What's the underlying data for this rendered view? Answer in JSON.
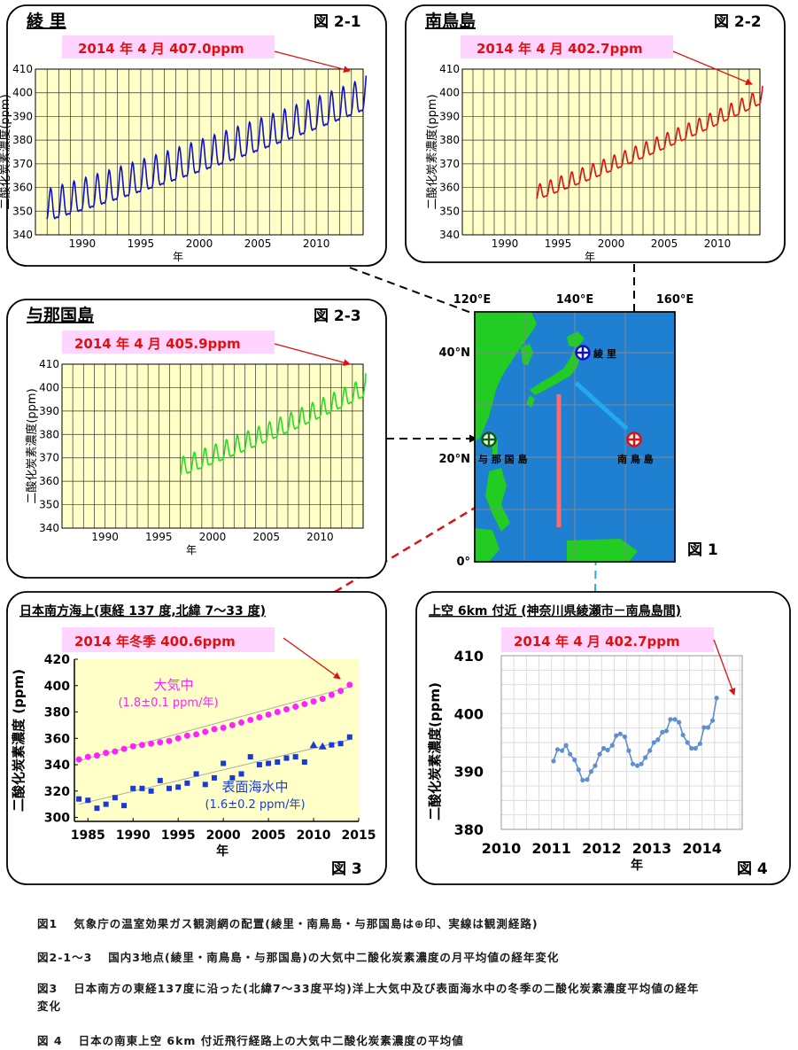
{
  "panels": {
    "ryori": {
      "title": "綾 里",
      "fig_label": "図 2-1",
      "callout": "2014 年 4 月 407.0ppm",
      "ylabel": "二酸化炭素濃度(ppm)",
      "xlabel": "年"
    },
    "minamitori": {
      "title": "南鳥島",
      "fig_label": "図 2-2",
      "callout": "2014 年 4 月 402.7ppm",
      "ylabel": "二酸化炭素濃度(ppm)",
      "xlabel": "年"
    },
    "yonaguni": {
      "title": "与那国島",
      "fig_label": "図 2-3",
      "callout": "2014 年 4 月 405.9ppm",
      "ylabel": "二酸化炭素濃度(ppm)",
      "xlabel": "年"
    },
    "ocean": {
      "title": "日本南方海上(東経 137 度,北緯 7～33 度)",
      "fig_label": "図 3",
      "callout": "2014 年冬季 400.6ppm",
      "ylabel": "二酸化炭素濃度 (ppm)",
      "xlabel": "年",
      "atm_label": "大気中",
      "atm_rate": "(1.8±0.1 ppm/年)",
      "sea_label": "表面海水中",
      "sea_rate": "(1.6±0.2 ppm/年)"
    },
    "aircraft": {
      "title": "上空 6km 付近 (神奈川県綾瀬市－南鳥島間)",
      "fig_label": "図 4",
      "callout": "2014 年 4 月 402.7ppm",
      "ylabel": "二酸化炭素濃度(ppm)",
      "xlabel": "年"
    },
    "map": {
      "fig_label": "図 1",
      "lon_labels": [
        "120°E",
        "140°E",
        "160°E"
      ],
      "lat_labels": [
        "40°N",
        "20°N",
        "0°"
      ],
      "stations": [
        "綾 里",
        "与 那 国 島",
        "南 鳥 島"
      ]
    }
  },
  "captions": [
    {
      "label": "図1",
      "text": "気象庁の温室効果ガス観測網の配置(綾里・南鳥島・与那国島は⊕印、実線は観測経路)"
    },
    {
      "label": "図2-1～3",
      "text": "国内3地点(綾里・南鳥島・与那国島)の大気中二酸化炭素濃度の月平均値の経年変化"
    },
    {
      "label": "図3",
      "text": "日本南方の東経137度に沿った(北緯7～33度平均)洋上大気中及び表面海水中の冬季の二酸化炭素濃度平均値の経年変化"
    },
    {
      "label": "図 4",
      "text": "日本の南東上空 6km 付近飛行経路上の大気中二酸化炭素濃度の平均値"
    }
  ],
  "colors": {
    "ryori": "#1010cc",
    "minamitori": "#e01010",
    "yonaguni": "#22dd22",
    "atm": "#ff22ff",
    "sea": "#1a3ad8",
    "aircraft": "#5f8fcf",
    "arrow": "#e01010",
    "callout_bg": "#ffd4ff",
    "plot_bg": "#ffffc8",
    "land": "#22cc22",
    "sea_blue": "#1f7fd0"
  },
  "chart_data": [
    {
      "id": "ryori",
      "type": "line",
      "xlim": [
        1986,
        2014
      ],
      "ylim": [
        340,
        410
      ],
      "yticks": [
        340,
        350,
        360,
        370,
        380,
        390,
        400,
        410
      ],
      "xticks": [
        1990,
        1995,
        2000,
        2005,
        2010
      ],
      "trend_start": 350.5,
      "trend_end": 397.8,
      "amplitude": 6.5,
      "series": [
        {
          "x_start": 1987.0,
          "x_end": 2014.3
        }
      ],
      "annotation": {
        "x": 2014.3,
        "y": 407.0
      }
    },
    {
      "id": "minamitori",
      "type": "line",
      "xlim": [
        1986,
        2014
      ],
      "ylim": [
        340,
        410
      ],
      "yticks": [
        340,
        350,
        360,
        370,
        380,
        390,
        400,
        410
      ],
      "xticks": [
        1990,
        1995,
        2000,
        2005,
        2010
      ],
      "trend_start": 357.0,
      "trend_end": 398.0,
      "amplitude": 3.0,
      "series": [
        {
          "x_start": 1993.0,
          "x_end": 2014.3
        }
      ],
      "annotation": {
        "x": 2014.3,
        "y": 402.7
      }
    },
    {
      "id": "yonaguni",
      "type": "line",
      "xlim": [
        1986,
        2014
      ],
      "ylim": [
        340,
        410
      ],
      "yticks": [
        340,
        350,
        360,
        370,
        380,
        390,
        400,
        410
      ],
      "xticks": [
        1990,
        1995,
        2000,
        2005,
        2010
      ],
      "trend_start": 365.0,
      "trend_end": 399.5,
      "amplitude": 3.8,
      "series": [
        {
          "x_start": 1997.0,
          "x_end": 2014.3
        }
      ],
      "annotation": {
        "x": 2014.3,
        "y": 405.9
      }
    },
    {
      "id": "ocean",
      "type": "scatter",
      "xlim": [
        1983.5,
        2015
      ],
      "ylim": [
        297,
        420
      ],
      "yticks": [
        300,
        320,
        340,
        360,
        380,
        400,
        420
      ],
      "xticks": [
        1985,
        1990,
        1995,
        2000,
        2005,
        2010,
        2015
      ],
      "series": [
        {
          "name": "大気中",
          "x": [
            1984,
            1985,
            1986,
            1987,
            1988,
            1989,
            1990,
            1991,
            1992,
            1993,
            1994,
            1995,
            1996,
            1997,
            1998,
            1999,
            2000,
            2001,
            2002,
            2003,
            2004,
            2005,
            2006,
            2007,
            2008,
            2009,
            2010,
            2011,
            2012,
            2013,
            2014
          ],
          "y": [
            344,
            346,
            347,
            349,
            350,
            352,
            354,
            355,
            356,
            357,
            358,
            360,
            362,
            363,
            365,
            367,
            368,
            370,
            372,
            374,
            376,
            378,
            380,
            382,
            384,
            386,
            388,
            390,
            393,
            396,
            400.6
          ]
        },
        {
          "name": "表面海水中",
          "x": [
            1984,
            1985,
            1986,
            1987,
            1988,
            1989,
            1990,
            1991,
            1992,
            1993,
            1994,
            1995,
            1996,
            1997,
            1998,
            1999,
            2000,
            2001,
            2002,
            2003,
            2004,
            2005,
            2006,
            2007,
            2008,
            2009,
            2010,
            2011,
            2012,
            2013,
            2014
          ],
          "y": [
            314,
            313,
            307,
            310,
            315,
            309,
            322,
            322,
            320,
            328,
            322,
            323,
            326,
            333,
            325,
            330,
            341,
            330,
            333,
            346,
            340,
            341,
            342,
            345,
            346,
            342,
            355,
            354,
            355,
            356,
            361
          ],
          "triangle_x": [
            2010,
            2011
          ]
        }
      ],
      "trend_lines": [
        {
          "x": [
            1984,
            2014
          ],
          "y": [
            343,
            399
          ]
        },
        {
          "x": [
            1984,
            2014
          ],
          "y": [
            310,
            359
          ]
        }
      ],
      "annotation": {
        "x": 2014,
        "y": 400.6
      }
    },
    {
      "id": "aircraft",
      "type": "line",
      "xlim": [
        2010,
        2014.8
      ],
      "ylim": [
        380,
        410
      ],
      "yticks": [
        380,
        390,
        400,
        410
      ],
      "xticks": [
        2010,
        2011,
        2012,
        2013,
        2014
      ],
      "series": [
        {
          "x": [
            2011.04,
            2011.12,
            2011.21,
            2011.29,
            2011.37,
            2011.46,
            2011.54,
            2011.62,
            2011.71,
            2011.79,
            2011.87,
            2011.96,
            2012.04,
            2012.12,
            2012.21,
            2012.29,
            2012.37,
            2012.46,
            2012.54,
            2012.62,
            2012.71,
            2012.79,
            2012.87,
            2012.96,
            2013.04,
            2013.12,
            2013.21,
            2013.29,
            2013.37,
            2013.46,
            2013.54,
            2013.62,
            2013.71,
            2013.79,
            2013.87,
            2013.96,
            2014.04,
            2014.12,
            2014.21,
            2014.29
          ],
          "y": [
            391.8,
            393.8,
            393.6,
            394.5,
            393.0,
            392.0,
            390.3,
            388.5,
            388.6,
            390.0,
            391.0,
            393.0,
            394.0,
            393.7,
            394.5,
            396.2,
            396.5,
            396.0,
            393.6,
            391.3,
            391.0,
            391.3,
            392.4,
            393.6,
            395.0,
            395.5,
            396.8,
            397.0,
            399.0,
            399.0,
            398.5,
            396.3,
            395.0,
            394.0,
            394.0,
            394.8,
            397.6,
            397.6,
            398.8,
            402.7
          ]
        }
      ],
      "annotation": {
        "x": 2014.29,
        "y": 402.7
      }
    }
  ]
}
